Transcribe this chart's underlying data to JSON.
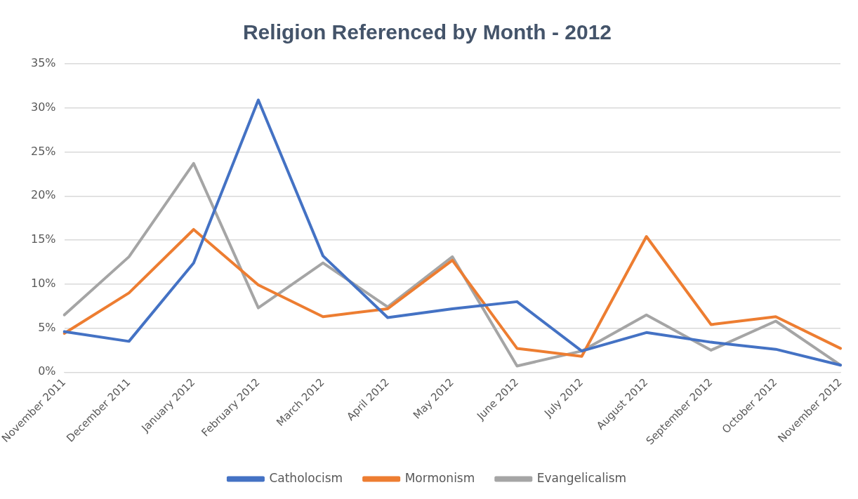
{
  "chart_data": {
    "type": "line",
    "title": "Religion Referenced by Month - 2012",
    "categories": [
      "November 2011",
      "December 2011",
      "January 2012",
      "February 2012",
      "March 2012",
      "April 2012",
      "May 2012",
      "June 2012",
      "July 2012",
      "August 2012",
      "September 2012",
      "October 2012",
      "November 2012"
    ],
    "series": [
      {
        "name": "Catholocism",
        "color": "#4472c4",
        "values": [
          4.6,
          3.5,
          12.4,
          30.9,
          13.2,
          6.2,
          7.2,
          8.0,
          2.4,
          4.5,
          3.4,
          2.6,
          0.8
        ]
      },
      {
        "name": "Mormonism",
        "color": "#ed7d31",
        "values": [
          4.4,
          9.0,
          16.2,
          9.9,
          6.3,
          7.2,
          12.7,
          2.7,
          1.8,
          15.4,
          5.4,
          6.3,
          2.7
        ]
      },
      {
        "name": "Evangelicalism",
        "color": "#a5a5a5",
        "values": [
          6.5,
          13.1,
          23.7,
          7.3,
          12.4,
          7.4,
          13.1,
          0.7,
          2.4,
          6.5,
          2.5,
          5.8,
          0.8
        ]
      }
    ],
    "ylim": [
      0,
      35
    ],
    "yticks": [
      {
        "value": 0,
        "label": "0%"
      },
      {
        "value": 5,
        "label": "5%"
      },
      {
        "value": 10,
        "label": "10%"
      },
      {
        "value": 15,
        "label": "15%"
      },
      {
        "value": 20,
        "label": "20%"
      },
      {
        "value": 25,
        "label": "25%"
      },
      {
        "value": 30,
        "label": "30%"
      },
      {
        "value": 35,
        "label": "35%"
      }
    ],
    "grid": "y",
    "legend": "bottom",
    "marker": "none",
    "line_style": "solid"
  }
}
